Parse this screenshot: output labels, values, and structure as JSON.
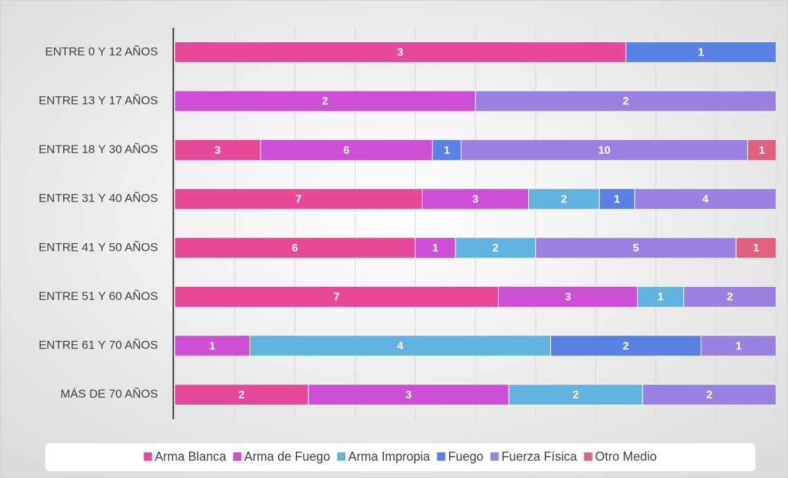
{
  "chart_data": {
    "type": "stacked-bar-percent",
    "orientation": "horizontal",
    "categories": [
      "ENTRE 0 Y 12 AÑOS",
      "ENTRE 13 Y 17 AÑOS",
      "ENTRE 18 Y 30 AÑOS",
      "ENTRE 31 Y 40 AÑOS",
      "ENTRE 41 Y 50 AÑOS",
      "ENTRE 51 Y 60 AÑOS",
      "ENTRE 61 Y 70 AÑOS",
      "MÁS DE 70 AÑOS"
    ],
    "series": [
      {
        "name": "Arma Blanca",
        "color": "#e8489a",
        "values": [
          3,
          null,
          3,
          7,
          6,
          7,
          null,
          2
        ]
      },
      {
        "name": "Arma de Fuego",
        "color": "#cc4fd6",
        "values": [
          null,
          2,
          6,
          3,
          1,
          3,
          1,
          3
        ]
      },
      {
        "name": "Arma Impropia",
        "color": "#62b3e0",
        "values": [
          null,
          null,
          null,
          2,
          2,
          1,
          4,
          2
        ]
      },
      {
        "name": "Fuego",
        "color": "#5a82e6",
        "values": [
          1,
          null,
          1,
          1,
          null,
          null,
          2,
          null
        ]
      },
      {
        "name": "Fuerza Física",
        "color": "#9a82e3",
        "values": [
          null,
          2,
          10,
          4,
          5,
          2,
          1,
          2
        ]
      },
      {
        "name": "Otro Medio",
        "color": "#e0607e",
        "values": [
          null,
          null,
          1,
          null,
          1,
          null,
          null,
          null
        ]
      }
    ],
    "xlim": [
      0,
      100
    ],
    "xticks": [
      0,
      10,
      20,
      30,
      40,
      50,
      60,
      70,
      80,
      90,
      100
    ],
    "grid": true,
    "legend": "bottom"
  }
}
